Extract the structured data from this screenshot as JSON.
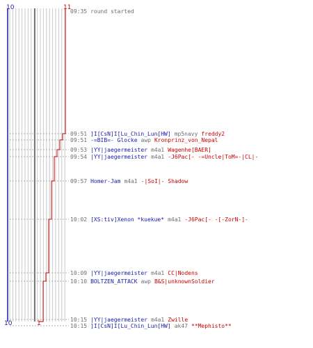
{
  "score": {
    "team_a": {
      "start": "10",
      "end": "10",
      "color": "#1a1aaa"
    },
    "team_b": {
      "start": "1",
      "end": "11",
      "color": "#cc0000"
    }
  },
  "events": [
    {
      "time": "09:35",
      "text": "round started"
    },
    {
      "time": "09:51",
      "killer": "]I[CsN]I[Lu_Chin_Lun[HW]",
      "weapon": "mp5navy",
      "victim": "freddy2"
    },
    {
      "time": "09:51",
      "killer": "-=BIB=- Glocke",
      "weapon": "awp",
      "victim": "Kronprinz_von_Nepal"
    },
    {
      "time": "09:53",
      "killer": "|YY|jaegermeister",
      "weapon": "m4a1",
      "victim": "Wagenhe[BAER]"
    },
    {
      "time": "09:54",
      "killer": "|YY|jaegermeister",
      "weapon": "m4a1",
      "victim": "-J6Pac[- -=Uncle|ToM=-|CL|-"
    },
    {
      "time": "09:57",
      "killer": "Homer-Jam",
      "weapon": "m4a1",
      "victim": "-|SoI|- Shadow"
    },
    {
      "time": "10:02",
      "killer": "[XS:tiv]Xenon *kuekue*",
      "weapon": "m4a1",
      "victim": "-J6Pac[- -[-ZorN-]-"
    },
    {
      "time": "10:09",
      "killer": "|YY|jaegermeister",
      "weapon": "m4a1",
      "victim": "CC|Nodens"
    },
    {
      "time": "10:10",
      "killer": "BOLTZEN_ATTACK",
      "weapon": "awp",
      "victim": "B&S|unknownSoldier"
    },
    {
      "time": "10:15",
      "killer": "|YY|jaegermeister",
      "weapon": "m4a1",
      "victim": "Zwille"
    },
    {
      "time": "10:15",
      "killer": "]I[CsN]I[Lu_Chin_Lun[HW]",
      "weapon": "ak47",
      "victim": "**Mephisto**"
    }
  ]
}
